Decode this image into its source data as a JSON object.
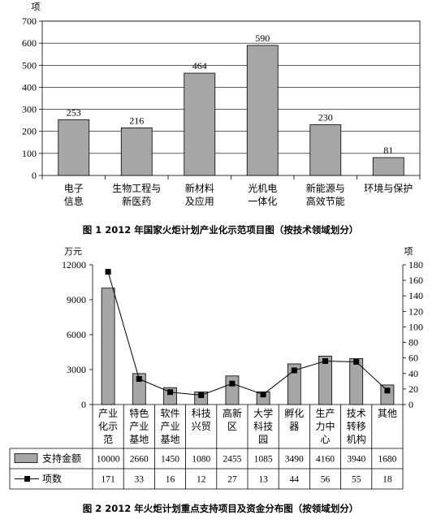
{
  "chart_data": [
    {
      "type": "bar",
      "ylabel": "项",
      "ylim": [
        0,
        700
      ],
      "yticks": [
        0,
        100,
        200,
        300,
        400,
        500,
        600,
        700
      ],
      "categories": [
        [
          "电子",
          "信息"
        ],
        [
          "生物工程与",
          "新医药"
        ],
        [
          "新材料",
          "及应用"
        ],
        [
          "光机电",
          "一体化"
        ],
        [
          "新能源与",
          "高效节能"
        ],
        [
          "环境与保护"
        ]
      ],
      "values": [
        253,
        216,
        464,
        590,
        230,
        81
      ],
      "bar_color": "#a6a6a6",
      "caption": "图 1 2012 年国家火炬计划产业化示范项目图（按技术领域划分）"
    },
    {
      "type": "bar+line",
      "left_unit": "万元",
      "right_unit": "项",
      "y_left": {
        "ylim": [
          0,
          12000
        ],
        "ticks": [
          0,
          3000,
          6000,
          9000,
          12000
        ]
      },
      "y_right": {
        "ylim": [
          0,
          180
        ],
        "ticks": [
          0,
          20,
          40,
          60,
          80,
          100,
          120,
          140,
          160,
          180
        ]
      },
      "categories": [
        [
          "产业",
          "化示",
          "范"
        ],
        [
          "特色",
          "产业",
          "基地"
        ],
        [
          "软件",
          "产业",
          "基地"
        ],
        [
          "科技",
          "兴贸"
        ],
        [
          "高新",
          "区"
        ],
        [
          "大学",
          "科技",
          "园"
        ],
        [
          "孵化",
          "器"
        ],
        [
          "生产",
          "力中",
          "心"
        ],
        [
          "技术",
          "转移",
          "机构"
        ],
        [
          "其他"
        ]
      ],
      "series": [
        {
          "name": "支持金额",
          "kind": "bar",
          "axis": "left",
          "values": [
            10000,
            2660,
            1450,
            1080,
            2455,
            1085,
            3490,
            4160,
            3940,
            1680
          ]
        },
        {
          "name": "项数",
          "kind": "line",
          "axis": "right",
          "values": [
            171,
            33,
            16,
            12,
            27,
            13,
            44,
            56,
            55,
            18
          ]
        }
      ],
      "bar_color": "#a6a6a6",
      "line_color": "#000000",
      "caption": "图 2 2012 年火炬计划重点支持项目及资金分布图（按领域划分）"
    }
  ]
}
